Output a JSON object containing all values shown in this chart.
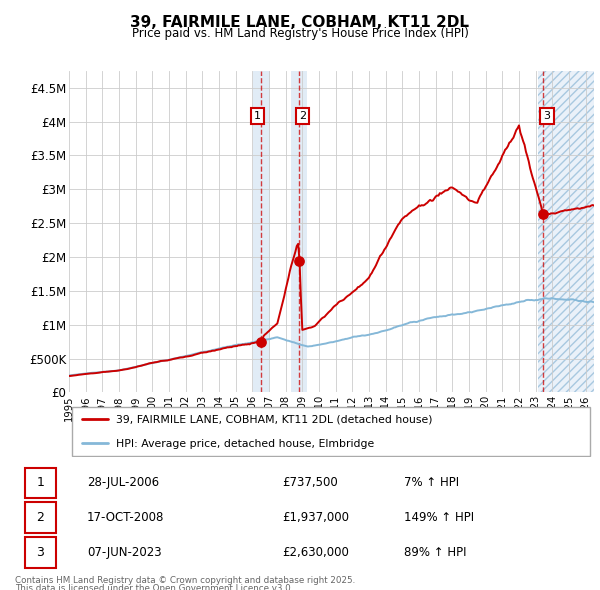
{
  "title": "39, FAIRMILE LANE, COBHAM, KT11 2DL",
  "subtitle": "Price paid vs. HM Land Registry's House Price Index (HPI)",
  "legend_line1": "39, FAIRMILE LANE, COBHAM, KT11 2DL (detached house)",
  "legend_line2": "HPI: Average price, detached house, Elmbridge",
  "footer1": "Contains HM Land Registry data © Crown copyright and database right 2025.",
  "footer2": "This data is licensed under the Open Government Licence v3.0.",
  "transactions": [
    {
      "id": 1,
      "date": "28-JUL-2006",
      "price": 737500,
      "hpi_pct": "7% ↑ HPI"
    },
    {
      "id": 2,
      "date": "17-OCT-2008",
      "price": 1937000,
      "hpi_pct": "149% ↑ HPI"
    },
    {
      "id": 3,
      "date": "07-JUN-2023",
      "price": 2630000,
      "hpi_pct": "89% ↑ HPI"
    }
  ],
  "ylim": [
    0,
    4750000
  ],
  "xlim_start": 1995.0,
  "xlim_end": 2026.5,
  "background_color": "#ffffff",
  "grid_color": "#cccccc",
  "red_line_color": "#cc0000",
  "blue_line_color": "#85b8d8",
  "shaded_color": "#dce9f5",
  "hatch_color": "#a8c8e0"
}
